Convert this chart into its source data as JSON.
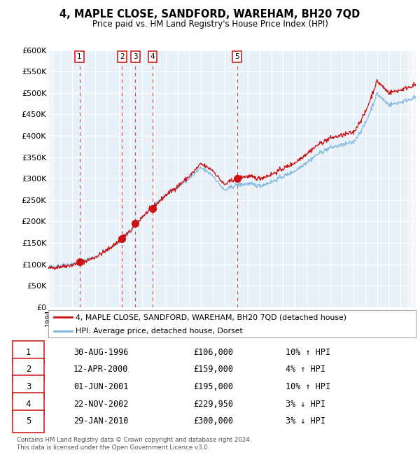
{
  "title": "4, MAPLE CLOSE, SANDFORD, WAREHAM, BH20 7QD",
  "subtitle": "Price paid vs. HM Land Registry's House Price Index (HPI)",
  "ylim": [
    0,
    600000
  ],
  "yticks": [
    0,
    50000,
    100000,
    150000,
    200000,
    250000,
    300000,
    350000,
    400000,
    450000,
    500000,
    550000,
    600000
  ],
  "ytick_labels": [
    "£0",
    "£50K",
    "£100K",
    "£150K",
    "£200K",
    "£250K",
    "£300K",
    "£350K",
    "£400K",
    "£450K",
    "£500K",
    "£550K",
    "£600K"
  ],
  "background_color": "#e8f0f8",
  "hpi_color": "#7ab3d9",
  "price_color": "#cc1111",
  "sale_marker_color": "#cc1111",
  "dashed_line_color": "#cc3333",
  "legend_label_price": "4, MAPLE CLOSE, SANDFORD, WAREHAM, BH20 7QD (detached house)",
  "legend_label_hpi": "HPI: Average price, detached house, Dorset",
  "sales": [
    {
      "num": 1,
      "price": 106000,
      "year_x": 1996.66
    },
    {
      "num": 2,
      "price": 159000,
      "year_x": 2000.28
    },
    {
      "num": 3,
      "price": 195000,
      "year_x": 2001.42
    },
    {
      "num": 4,
      "price": 229950,
      "year_x": 2002.89
    },
    {
      "num": 5,
      "price": 300000,
      "year_x": 2010.07
    }
  ],
  "table_rows": [
    {
      "num": 1,
      "date": "30-AUG-1996",
      "price_str": "£106,000",
      "pct_str": "10% ↑ HPI"
    },
    {
      "num": 2,
      "date": "12-APR-2000",
      "price_str": "£159,000",
      "pct_str": "4% ↑ HPI"
    },
    {
      "num": 3,
      "date": "01-JUN-2001",
      "price_str": "£195,000",
      "pct_str": "10% ↑ HPI"
    },
    {
      "num": 4,
      "date": "22-NOV-2002",
      "price_str": "£229,950",
      "pct_str": "3% ↓ HPI"
    },
    {
      "num": 5,
      "date": "29-JAN-2010",
      "price_str": "£300,000",
      "pct_str": "3% ↓ HPI"
    }
  ],
  "footer": "Contains HM Land Registry data © Crown copyright and database right 2024.\nThis data is licensed under the Open Government Licence v3.0.",
  "xmin": 1994.0,
  "xmax": 2025.3
}
